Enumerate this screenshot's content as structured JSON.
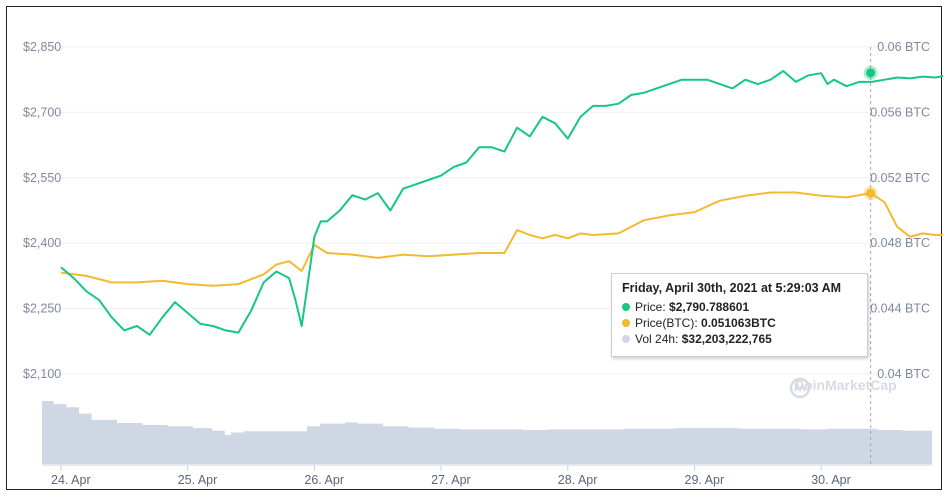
{
  "chart_data": {
    "type": "line",
    "title": "",
    "x_range": [
      "24. Apr",
      "30. Apr"
    ],
    "x_ticks": [
      "24. Apr",
      "25. Apr",
      "26. Apr",
      "27. Apr",
      "28. Apr",
      "29. Apr",
      "30. Apr"
    ],
    "y_left": {
      "unit": "USD",
      "ticks": [
        "$2,850",
        "$2,700",
        "$2,550",
        "$2,400",
        "$2,250",
        "$2,100"
      ],
      "range": [
        2100,
        2850
      ]
    },
    "y_right": {
      "unit": "BTC",
      "ticks": [
        "0.06 BTC",
        "0.056 BTC",
        "0.052 BTC",
        "0.048 BTC",
        "0.044 BTC",
        "0.04 BTC"
      ],
      "range": [
        0.04,
        0.06
      ]
    },
    "grid": true,
    "series": [
      {
        "name": "Price",
        "axis": "left",
        "color": "#16c784",
        "x": [
          0.0,
          0.1,
          0.2,
          0.3,
          0.4,
          0.5,
          0.6,
          0.7,
          0.8,
          0.9,
          1.0,
          1.1,
          1.2,
          1.3,
          1.4,
          1.5,
          1.6,
          1.7,
          1.8,
          1.85,
          1.9,
          2.0,
          2.05,
          2.1,
          2.2,
          2.3,
          2.4,
          2.5,
          2.6,
          2.7,
          2.8,
          2.9,
          3.0,
          3.1,
          3.2,
          3.3,
          3.4,
          3.5,
          3.6,
          3.7,
          3.8,
          3.9,
          4.0,
          4.1,
          4.2,
          4.3,
          4.4,
          4.5,
          4.6,
          4.7,
          4.8,
          4.9,
          5.0,
          5.1,
          5.2,
          5.3,
          5.4,
          5.5,
          5.6,
          5.7,
          5.8,
          5.9,
          6.0,
          6.05,
          6.1,
          6.2,
          6.3,
          6.4,
          6.5,
          6.6,
          6.7,
          6.8,
          6.9,
          7.0
        ],
        "values": [
          2345,
          2320,
          2290,
          2270,
          2230,
          2200,
          2210,
          2190,
          2230,
          2265,
          2240,
          2215,
          2210,
          2200,
          2195,
          2245,
          2310,
          2335,
          2320,
          2270,
          2210,
          2415,
          2450,
          2450,
          2475,
          2510,
          2500,
          2515,
          2475,
          2525,
          2535,
          2545,
          2555,
          2575,
          2585,
          2620,
          2620,
          2610,
          2665,
          2645,
          2690,
          2675,
          2640,
          2690,
          2715,
          2715,
          2720,
          2740,
          2745,
          2755,
          2765,
          2775,
          2775,
          2775,
          2765,
          2755,
          2775,
          2765,
          2775,
          2795,
          2770,
          2785,
          2790,
          2765,
          2775,
          2760,
          2770,
          2770,
          2775,
          2780,
          2778,
          2782,
          2780,
          2785
        ],
        "marker": {
          "x": 6.39,
          "value": 2790.788601
        }
      },
      {
        "name": "Price(BTC)",
        "axis": "right",
        "color": "#f3ba2f",
        "x": [
          0.0,
          0.2,
          0.4,
          0.6,
          0.8,
          1.0,
          1.2,
          1.4,
          1.6,
          1.7,
          1.8,
          1.9,
          2.0,
          2.1,
          2.3,
          2.5,
          2.7,
          2.9,
          3.1,
          3.3,
          3.5,
          3.6,
          3.7,
          3.8,
          3.9,
          4.0,
          4.1,
          4.2,
          4.4,
          4.6,
          4.8,
          5.0,
          5.2,
          5.4,
          5.6,
          5.8,
          6.0,
          6.2,
          6.39,
          6.5,
          6.6,
          6.7,
          6.8,
          6.9,
          7.0
        ],
        "values": [
          0.0462,
          0.046,
          0.0456,
          0.0456,
          0.0457,
          0.0455,
          0.0454,
          0.0455,
          0.0461,
          0.0467,
          0.0469,
          0.0463,
          0.0479,
          0.0474,
          0.0473,
          0.0471,
          0.0473,
          0.0472,
          0.0473,
          0.0474,
          0.0474,
          0.0488,
          0.0485,
          0.0483,
          0.0485,
          0.0483,
          0.0486,
          0.0485,
          0.0486,
          0.0494,
          0.0497,
          0.0499,
          0.0506,
          0.0509,
          0.0511,
          0.0511,
          0.0509,
          0.0508,
          0.051063,
          0.0505,
          0.049,
          0.0484,
          0.0486,
          0.0485,
          0.0485
        ],
        "marker": {
          "x": 6.39,
          "value": 0.051063
        }
      },
      {
        "name": "Vol 24h",
        "type": "area",
        "color": "#cfd6e4",
        "x": [
          0.0,
          0.1,
          0.2,
          0.3,
          0.4,
          0.6,
          0.8,
          1.0,
          1.2,
          1.35,
          1.45,
          1.5,
          1.6,
          1.8,
          2.0,
          2.1,
          2.2,
          2.4,
          2.5,
          2.7,
          2.9,
          3.1,
          3.3,
          3.5,
          3.8,
          4.0,
          4.3,
          4.6,
          4.8,
          5.0,
          5.2,
          5.5,
          5.8,
          6.0,
          6.2,
          6.4,
          6.6,
          6.8,
          7.0
        ],
        "values": [
          100,
          95,
          90,
          80,
          70,
          65,
          62,
          60,
          57,
          53,
          46,
          50,
          52,
          52,
          52,
          60,
          64,
          66,
          64,
          60,
          58,
          56,
          55,
          55,
          54,
          55,
          55,
          56,
          56,
          57,
          57,
          56,
          56,
          55,
          56,
          56,
          54,
          53,
          53
        ]
      }
    ]
  },
  "tooltip": {
    "title": "Friday, April 30th, 2021 at 5:29:03 AM",
    "price_label": "Price:",
    "price_value": "$2,790.788601",
    "btc_label": "Price(BTC):",
    "btc_value": "0.051063BTC",
    "vol_label": "Vol 24h:",
    "vol_value": "$32,203,222,765",
    "colors": {
      "price": "#16c784",
      "btc": "#f3ba2f",
      "vol": "#cfd6e4"
    }
  },
  "watermark": {
    "text": "CoinMarketCap",
    "icon": "coinmarketcap-logo-icon"
  }
}
